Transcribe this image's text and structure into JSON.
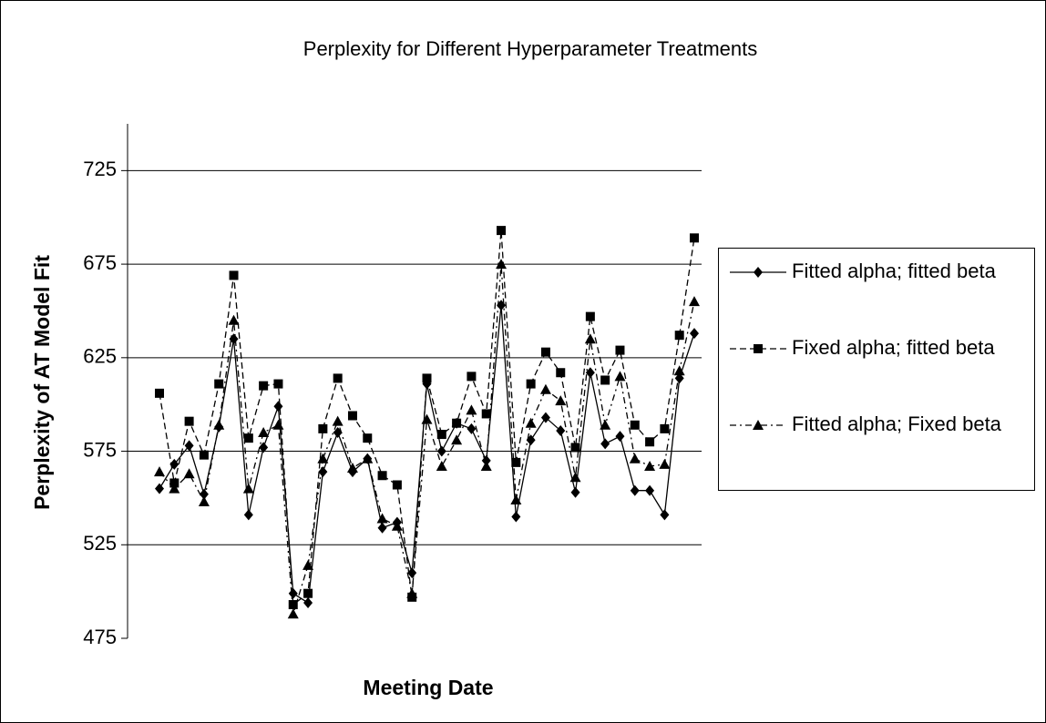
{
  "chart_data": {
    "type": "line",
    "title": "Perplexity for Different Hyperparameter Treatments",
    "x_label": "Meeting Date",
    "y_label": "Perplexity of AT Model Fit",
    "categories": [
      null,
      null,
      null,
      null,
      null,
      null,
      null,
      null,
      null,
      null,
      null,
      null,
      null,
      null,
      null,
      null,
      null,
      null,
      null,
      null,
      null,
      null,
      null,
      null,
      null,
      null,
      null,
      null,
      null,
      null,
      null,
      null,
      null,
      null,
      null,
      null,
      null
    ],
    "series": [
      {
        "name": "Fitted alpha; fitted beta",
        "color": "#000000",
        "marker": "diamond",
        "dash": "solid",
        "values": [
          555,
          568,
          578,
          552,
          588,
          635,
          541,
          577,
          599,
          499,
          494,
          564,
          585,
          564,
          571,
          534,
          537,
          510,
          611,
          575,
          590,
          587,
          570,
          653,
          540,
          581,
          593,
          586,
          553,
          617,
          579,
          583,
          554,
          554,
          541,
          614,
          638
        ]
      },
      {
        "name": "Fixed alpha; fitted beta",
        "color": "#000000",
        "marker": "square",
        "dash": "dashed",
        "values": [
          606,
          558,
          591,
          573,
          611,
          669,
          582,
          610,
          611,
          493,
          499,
          587,
          614,
          594,
          582,
          562,
          557,
          497,
          614,
          584,
          590,
          615,
          595,
          693,
          569,
          611,
          628,
          617,
          577,
          647,
          613,
          629,
          589,
          580,
          587,
          637,
          689
        ]
      },
      {
        "name": "Fitted alpha; Fixed beta",
        "color": "#000000",
        "marker": "triangle",
        "dash": "dashdot",
        "values": [
          564,
          555,
          563,
          548,
          589,
          645,
          555,
          585,
          589,
          488,
          514,
          571,
          591,
          566,
          571,
          539,
          535,
          499,
          592,
          567,
          581,
          597,
          567,
          675,
          549,
          590,
          608,
          602,
          561,
          635,
          589,
          615,
          571,
          567,
          568,
          618,
          655
        ]
      }
    ],
    "ylim": [
      475,
      750
    ],
    "yticks": [
      475,
      525,
      575,
      625,
      675,
      725
    ],
    "grid": true,
    "legend": "right"
  }
}
